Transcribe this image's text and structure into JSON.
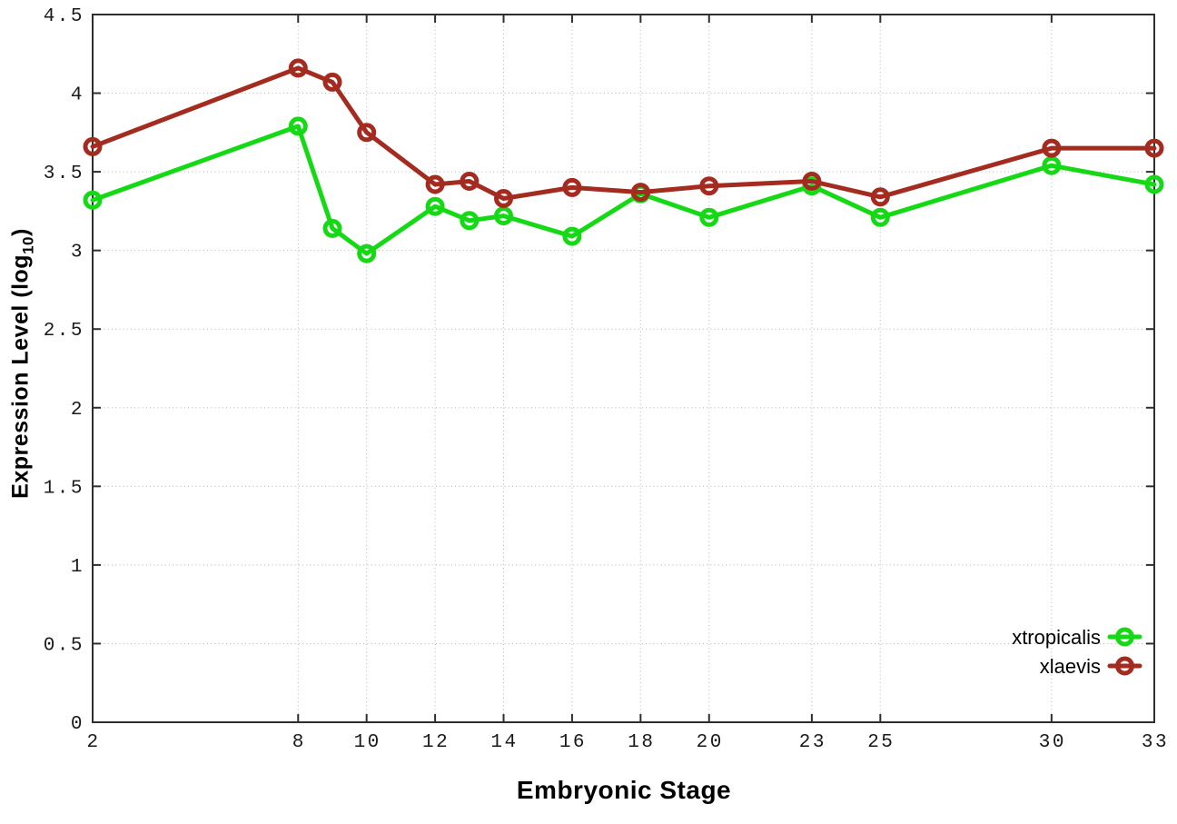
{
  "chart_data": {
    "type": "line",
    "xlabel": "Embryonic Stage",
    "ylabel": {
      "text": "Expression Level (log10)",
      "base": "Expression Level (log",
      "subscript": "10",
      "suffix": ")"
    },
    "x": [
      2,
      8,
      9,
      10,
      12,
      13,
      14,
      16,
      18,
      20,
      23,
      25,
      30,
      33
    ],
    "series": [
      {
        "name": "xtropicalis",
        "color": "#16d916",
        "values": [
          3.32,
          3.79,
          3.14,
          2.98,
          3.28,
          3.19,
          3.22,
          3.09,
          3.36,
          3.21,
          3.41,
          3.21,
          3.54,
          3.42
        ]
      },
      {
        "name": "xlaevis",
        "color": "#a32b20",
        "values": [
          3.66,
          4.16,
          4.07,
          3.75,
          3.42,
          3.44,
          3.33,
          3.4,
          3.37,
          3.41,
          3.44,
          3.34,
          3.65,
          3.65
        ]
      }
    ],
    "xticks": {
      "values": [
        2,
        8,
        10,
        12,
        14,
        16,
        18,
        20,
        23,
        25,
        30,
        33
      ],
      "labels": [
        "2",
        "8",
        "10",
        "12",
        "14",
        "16",
        "18",
        "20",
        "23",
        "25",
        "30",
        "33"
      ]
    },
    "yticks": {
      "values": [
        0,
        0.5,
        1,
        1.5,
        2,
        2.5,
        3,
        3.5,
        4,
        4.5
      ],
      "labels": [
        "0",
        "0.5",
        "1",
        "1.5",
        "2",
        "2.5",
        "3",
        "3.5",
        "4",
        "4.5"
      ]
    },
    "xlim": [
      2,
      33
    ],
    "ylim": [
      0,
      4.5
    ],
    "grid": {
      "show": true,
      "style": "dotted",
      "color": "#b3b3b3"
    },
    "legend": {
      "position": "bottom-right",
      "entries": [
        "xtropicalis",
        "xlaevis"
      ]
    },
    "marker": "open-circle",
    "line_width": 5,
    "colors": {
      "axis": "#2e2e2e",
      "tick_label": "#1a1a1a",
      "legend_text": "#000000"
    }
  }
}
